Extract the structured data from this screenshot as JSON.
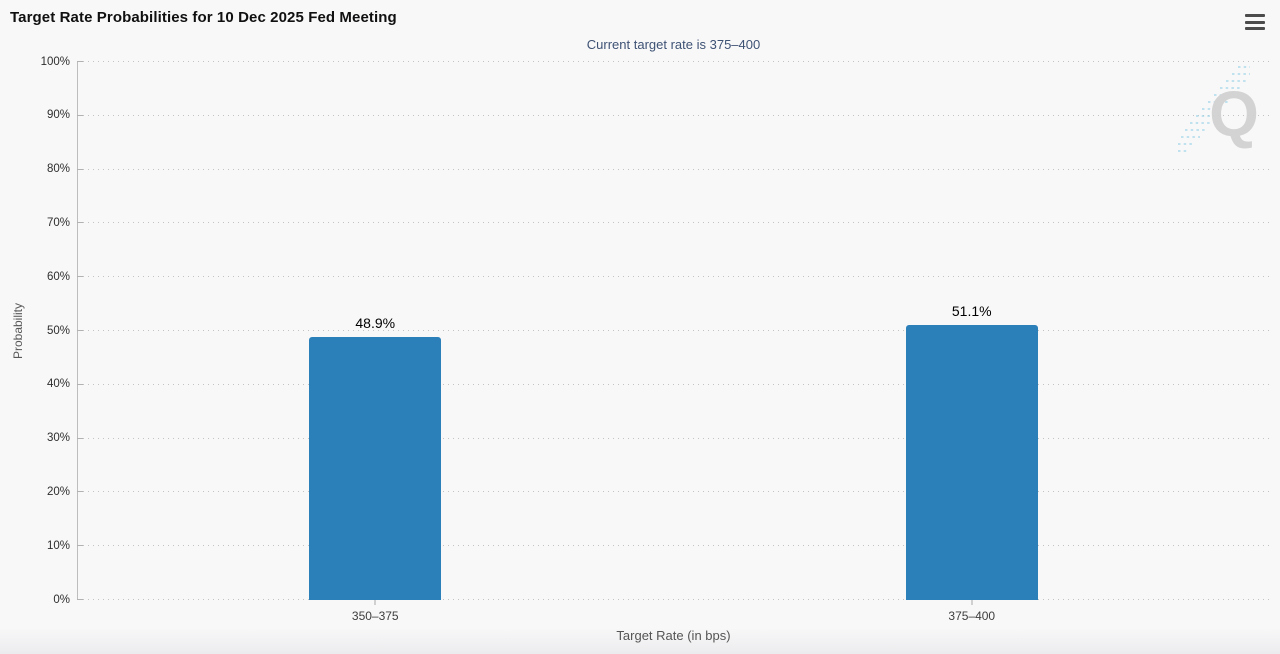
{
  "header": {
    "title": "Target Rate Probabilities for 10 Dec 2025 Fed Meeting",
    "menu_icon": "hamburger-menu"
  },
  "chart_data": {
    "type": "bar",
    "title": "Target Rate Probabilities for 10 Dec 2025 Fed Meeting",
    "subtitle": "Current target rate is 375–400",
    "categories": [
      "350–375",
      "375–400"
    ],
    "values": [
      48.9,
      51.1
    ],
    "value_labels": [
      "48.9%",
      "51.1%"
    ],
    "xlabel": "Target Rate (in bps)",
    "ylabel": "Probability",
    "ylim": [
      0,
      100
    ],
    "ytick_step": 10,
    "ytick_labels": [
      "0%",
      "10%",
      "20%",
      "30%",
      "40%",
      "50%",
      "60%",
      "70%",
      "80%",
      "90%",
      "100%"
    ],
    "grid": "dotted-horizontal",
    "legend": "none",
    "bar_color": "#2b80ba"
  },
  "watermark": {
    "letter": "Q",
    "icon": "quikstrike-q-logo"
  },
  "colors": {
    "bar": "#2b80ba",
    "subtitle_text": "#3e5274",
    "background": "#f8f8f9",
    "watermark_gray": "#d0d0d0",
    "watermark_blue": "#a6d7ea"
  }
}
